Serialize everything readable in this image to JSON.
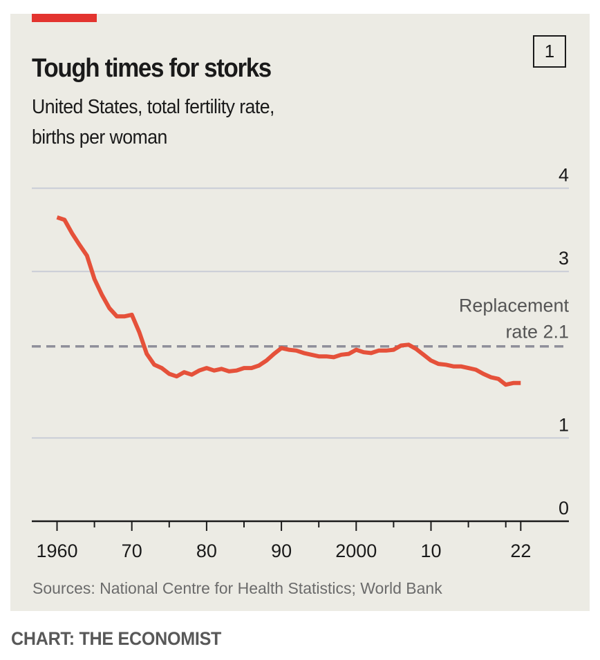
{
  "header": {
    "title": "Tough times for storks",
    "chart_number": "1",
    "subtitle_line1": "United States, total fertility rate,",
    "subtitle_line2": "births per woman"
  },
  "footer": {
    "sources": "Sources: National Centre for Health Statistics; World Bank",
    "credit": "CHART: THE ECONOMIST"
  },
  "colors": {
    "brand_red": "#e3342f",
    "line": "#e5513a",
    "background": "#ecebe4",
    "grid": "#c9ccd6",
    "reference": "#8f8f9a"
  },
  "chart_data": {
    "type": "line",
    "title": "Tough times for storks",
    "subtitle": "United States, total fertility rate, births per woman",
    "xlabel": "",
    "ylabel": "births per woman",
    "xlim": [
      1957,
      2029
    ],
    "ylim": [
      0,
      4
    ],
    "y_ticks": [
      0,
      1,
      3,
      4
    ],
    "y_tick_labels": [
      "0",
      "1",
      "3",
      "4"
    ],
    "x_ticks_major": [
      1960,
      1970,
      1980,
      1990,
      2000,
      2010,
      2022
    ],
    "x_tick_labels": [
      "1960",
      "70",
      "80",
      "90",
      "2000",
      "10",
      "22"
    ],
    "x_ticks_minor": [
      1965,
      1975,
      1985,
      1995,
      2005,
      2015,
      2020
    ],
    "grid": true,
    "legend": "none",
    "reference_line": {
      "value": 2.1,
      "label_line1": "Replacement",
      "label_line2": "rate 2.1",
      "style": "dashed"
    },
    "source": "Sources: National Centre for Health Statistics; World Bank",
    "series": [
      {
        "name": "United States total fertility rate",
        "x": [
          1960,
          1961,
          1962,
          1963,
          1964,
          1965,
          1966,
          1967,
          1968,
          1969,
          1970,
          1971,
          1972,
          1973,
          1974,
          1975,
          1976,
          1977,
          1978,
          1979,
          1980,
          1981,
          1982,
          1983,
          1984,
          1985,
          1986,
          1987,
          1988,
          1989,
          1990,
          1991,
          1992,
          1993,
          1994,
          1995,
          1996,
          1997,
          1998,
          1999,
          2000,
          2001,
          2002,
          2003,
          2004,
          2005,
          2006,
          2007,
          2008,
          2009,
          2010,
          2011,
          2012,
          2013,
          2014,
          2015,
          2016,
          2017,
          2018,
          2019,
          2020,
          2021,
          2022
        ],
        "values": [
          3.65,
          3.62,
          3.46,
          3.32,
          3.19,
          2.91,
          2.72,
          2.56,
          2.46,
          2.46,
          2.48,
          2.27,
          2.01,
          1.88,
          1.84,
          1.77,
          1.74,
          1.79,
          1.76,
          1.81,
          1.84,
          1.81,
          1.83,
          1.8,
          1.81,
          1.84,
          1.84,
          1.87,
          1.93,
          2.01,
          2.08,
          2.06,
          2.05,
          2.02,
          2.0,
          1.98,
          1.98,
          1.97,
          2.0,
          2.01,
          2.06,
          2.03,
          2.02,
          2.05,
          2.05,
          2.06,
          2.11,
          2.12,
          2.07,
          2.0,
          1.93,
          1.89,
          1.88,
          1.86,
          1.86,
          1.84,
          1.82,
          1.77,
          1.73,
          1.71,
          1.64,
          1.66,
          1.66
        ]
      }
    ]
  }
}
